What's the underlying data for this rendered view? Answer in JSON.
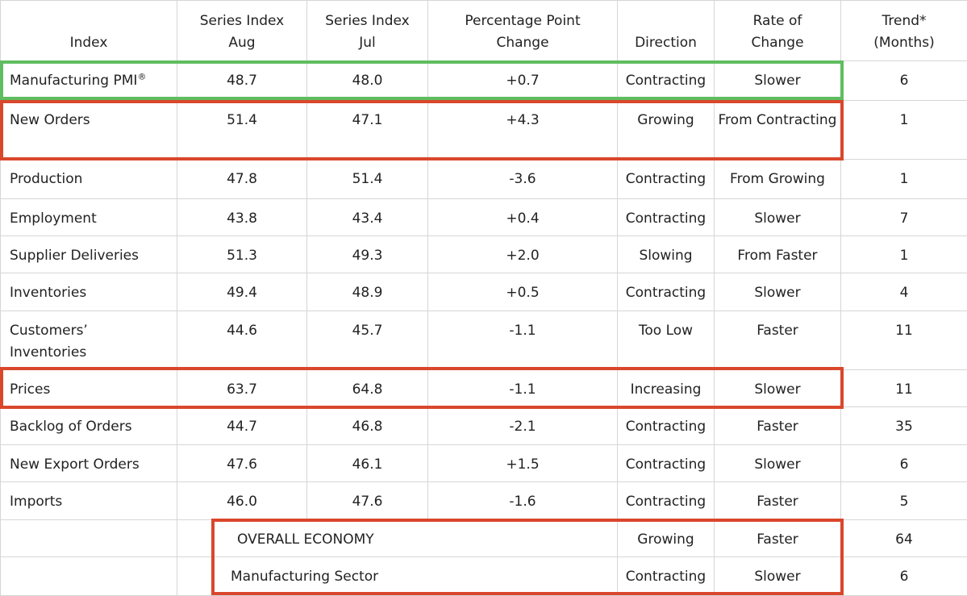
{
  "columns": [
    {
      "line1": "",
      "line2": "Index"
    },
    {
      "line1": "Series Index",
      "line2": "Aug"
    },
    {
      "line1": "Series Index",
      "line2": "Jul"
    },
    {
      "line1": "Percentage Point",
      "line2": "Change"
    },
    {
      "line1": "",
      "line2": "Direction"
    },
    {
      "line1": "Rate of",
      "line2": "Change"
    },
    {
      "line1": "Trend*",
      "line2": "(Months)"
    }
  ],
  "rows": [
    {
      "index": "Manufacturing PMI",
      "sup": "®",
      "aug": "48.7",
      "jul": "48.0",
      "change": "+0.7",
      "direction": "Contracting",
      "rate": "Slower",
      "trend": "6"
    },
    {
      "index": "New Orders",
      "aug": "51.4",
      "jul": "47.1",
      "change": "+4.3",
      "direction": "Growing",
      "rate": "From Contracting",
      "trend": "1"
    },
    {
      "index": "Production",
      "aug": "47.8",
      "jul": "51.4",
      "change": "-3.6",
      "direction": "Contracting",
      "rate": "From Growing",
      "trend": "1"
    },
    {
      "index": "Employment",
      "aug": "43.8",
      "jul": "43.4",
      "change": "+0.4",
      "direction": "Contracting",
      "rate": "Slower",
      "trend": "7"
    },
    {
      "index": "Supplier Deliveries",
      "aug": "51.3",
      "jul": "49.3",
      "change": "+2.0",
      "direction": "Slowing",
      "rate": "From Faster",
      "trend": "1"
    },
    {
      "index": "Inventories",
      "aug": "49.4",
      "jul": "48.9",
      "change": "+0.5",
      "direction": "Contracting",
      "rate": "Slower",
      "trend": "4"
    },
    {
      "index": "Customers’ Inventories",
      "aug": "44.6",
      "jul": "45.7",
      "change": "-1.1",
      "direction": "Too Low",
      "rate": "Faster",
      "trend": "11"
    },
    {
      "index": "Prices",
      "aug": "63.7",
      "jul": "64.8",
      "change": "-1.1",
      "direction": "Increasing",
      "rate": "Slower",
      "trend": "11"
    },
    {
      "index": "Backlog of Orders",
      "aug": "44.7",
      "jul": "46.8",
      "change": "-2.1",
      "direction": "Contracting",
      "rate": "Faster",
      "trend": "35"
    },
    {
      "index": "New Export Orders",
      "aug": "47.6",
      "jul": "46.1",
      "change": "+1.5",
      "direction": "Contracting",
      "rate": "Slower",
      "trend": "6"
    },
    {
      "index": "Imports",
      "aug": "46.0",
      "jul": "47.6",
      "change": "-1.6",
      "direction": "Contracting",
      "rate": "Faster",
      "trend": "5"
    }
  ],
  "summary": [
    {
      "label": "OVERALL ECONOMY",
      "direction": "Growing",
      "rate": "Faster",
      "trend": "64"
    },
    {
      "label": "Manufacturing Sector",
      "direction": "Contracting",
      "rate": "Slower",
      "trend": "6"
    }
  ],
  "highlight_colors": {
    "green": "#5fbd5f",
    "red": "#d9472c"
  }
}
